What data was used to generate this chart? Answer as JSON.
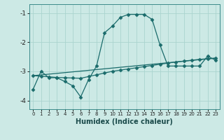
{
  "xlabel": "Humidex (Indice chaleur)",
  "bg_color": "#cce9e5",
  "line_color": "#1a6b6b",
  "grid_color": "#aad4cf",
  "ylim": [
    -4.3,
    -0.7
  ],
  "xlim": [
    -0.5,
    23.5
  ],
  "yticks": [
    -4,
    -3,
    -2,
    -1
  ],
  "xticks": [
    0,
    1,
    2,
    3,
    4,
    5,
    6,
    7,
    8,
    9,
    10,
    11,
    12,
    13,
    14,
    15,
    16,
    17,
    18,
    19,
    20,
    21,
    22,
    23
  ],
  "line1_x": [
    0,
    1,
    2,
    3,
    4,
    5,
    6,
    7,
    8,
    9,
    10,
    11,
    12,
    13,
    14,
    15,
    16,
    17,
    18,
    19,
    20,
    21,
    22,
    23
  ],
  "line1_y": [
    -3.62,
    -3.0,
    -3.22,
    -3.22,
    -3.35,
    -3.5,
    -3.88,
    -3.28,
    -2.82,
    -1.68,
    -1.45,
    -1.15,
    -1.05,
    -1.05,
    -1.05,
    -1.22,
    -2.1,
    -2.82,
    -2.82,
    -2.82,
    -2.82,
    -2.82,
    -2.48,
    -2.62
  ],
  "line2_x": [
    0,
    1,
    2,
    3,
    4,
    5,
    6,
    7,
    8,
    9,
    10,
    11,
    12,
    13,
    14,
    15,
    16,
    17,
    18,
    19,
    20,
    21,
    22,
    23
  ],
  "line2_y": [
    -3.15,
    -3.17,
    -3.19,
    -3.21,
    -3.22,
    -3.23,
    -3.24,
    -3.18,
    -3.12,
    -3.06,
    -3.0,
    -2.96,
    -2.92,
    -2.88,
    -2.84,
    -2.8,
    -2.76,
    -2.72,
    -2.68,
    -2.65,
    -2.62,
    -2.59,
    -2.57,
    -2.55
  ],
  "line3_x": [
    0,
    23
  ],
  "line3_y": [
    -3.15,
    -2.55
  ]
}
